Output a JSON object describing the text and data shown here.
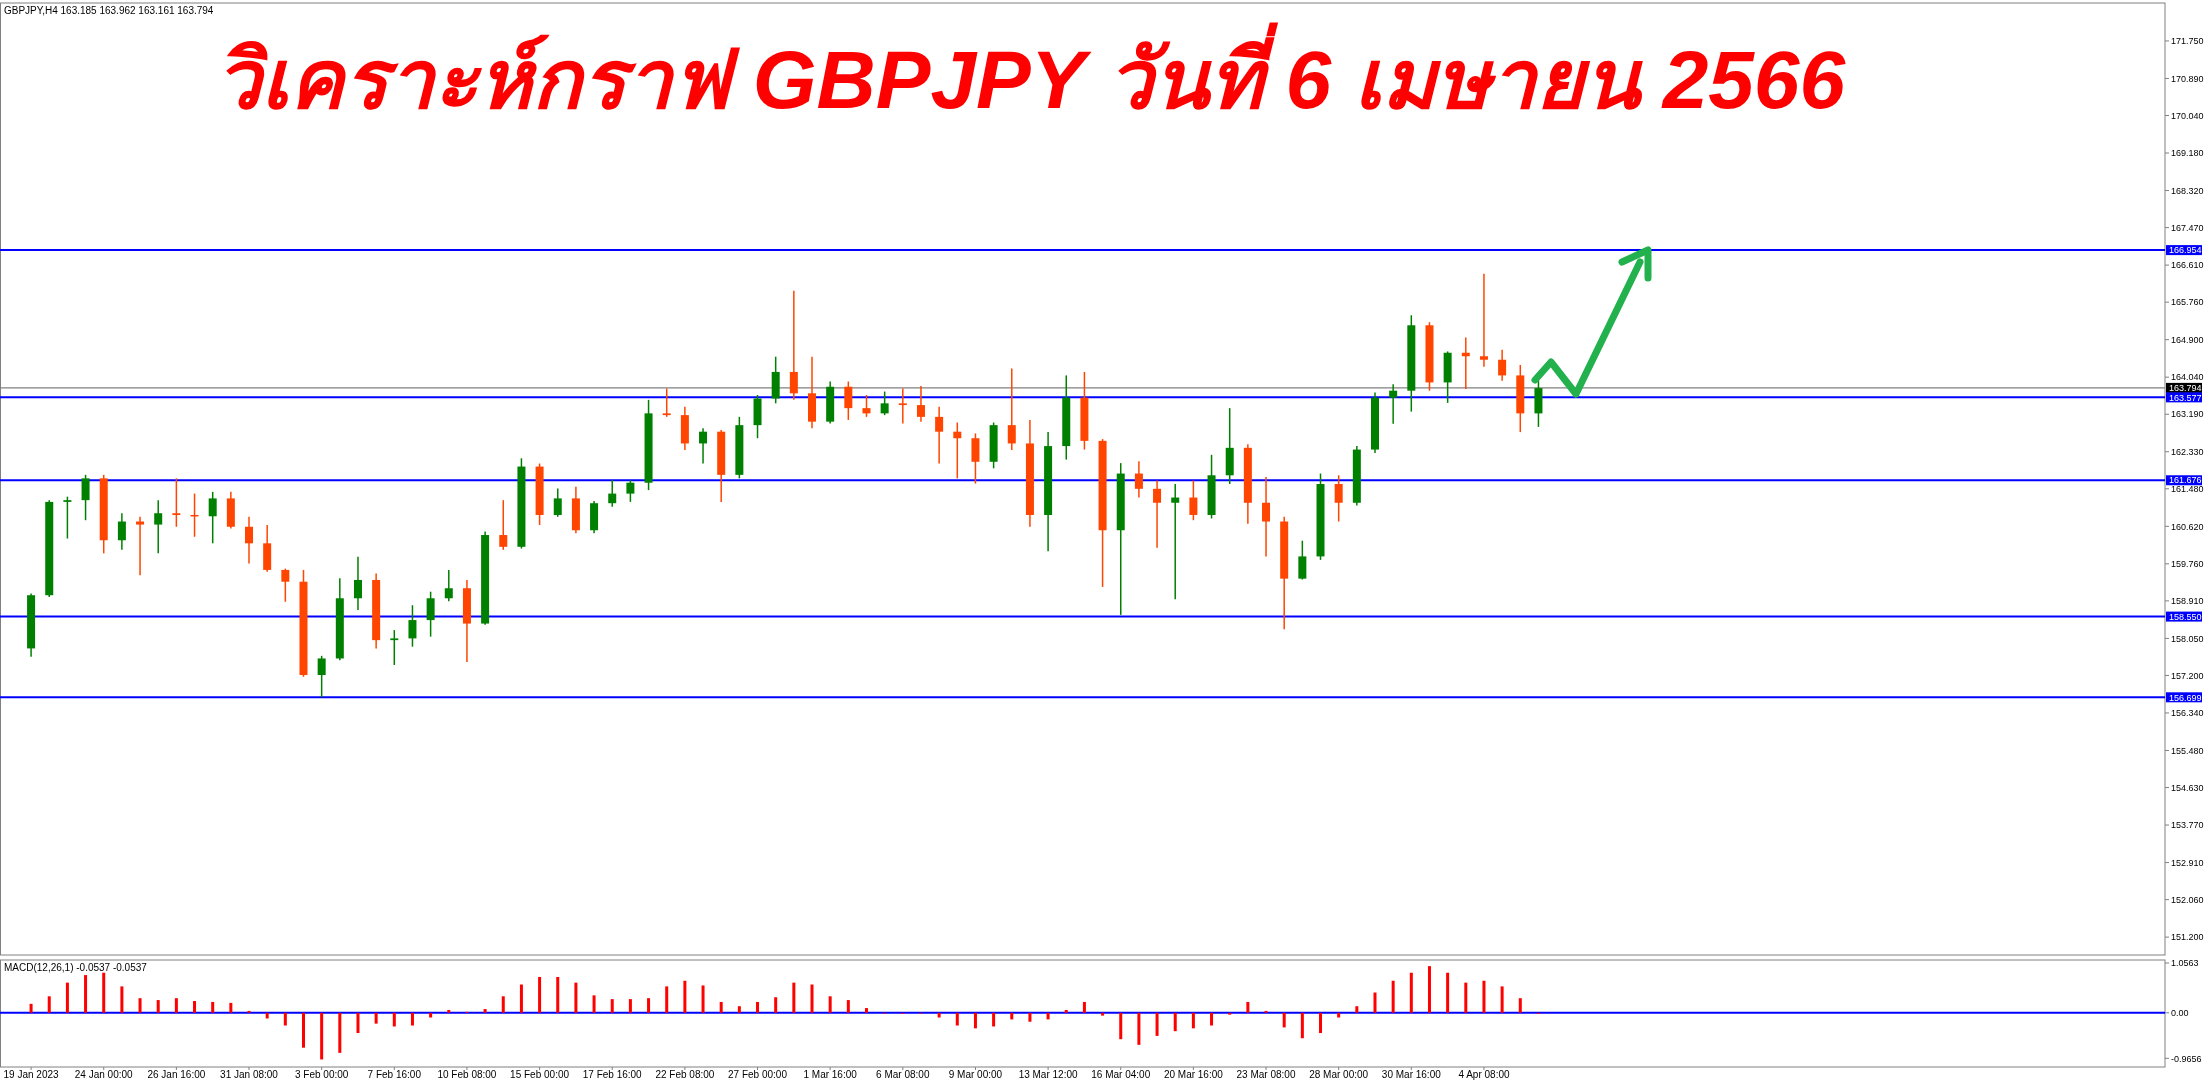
{
  "chart_data": [
    {
      "type": "candlestick",
      "title": "วิเคราะห์กราฟ GBPJPY วันที่ 6 เมษายน 2566",
      "annotations": [
        "GBPJPY,H4 163.185 163.962 163.161 163.794"
      ],
      "categories": [
        null,
        null,
        null,
        null,
        null,
        null,
        null,
        null,
        null,
        null,
        null,
        null,
        null,
        null,
        null,
        null,
        null,
        null,
        null,
        null,
        null,
        null,
        null,
        null,
        null,
        null,
        null,
        null,
        null,
        null,
        null,
        null,
        null,
        null,
        null,
        null,
        null,
        null,
        null,
        null,
        null,
        null,
        null,
        null,
        null,
        null,
        null,
        null,
        null,
        null,
        null,
        null,
        null,
        null,
        null,
        null,
        null,
        null,
        null,
        null,
        null,
        null,
        null,
        null,
        null,
        null,
        null,
        null,
        null,
        null,
        null,
        null,
        null,
        null,
        null,
        null,
        null,
        null,
        null,
        null,
        null,
        null,
        null,
        null,
        null,
        null,
        null,
        null,
        null,
        null,
        null,
        null,
        null,
        null,
        null,
        null,
        null,
        null,
        null,
        null,
        null,
        null,
        null,
        null,
        null,
        null,
        null,
        null,
        null,
        null,
        null,
        null,
        null,
        null,
        null,
        null,
        null,
        null
      ],
      "ohlc": [
        [
          157.82,
          159.08,
          157.63,
          159.04
        ],
        [
          159.04,
          161.22,
          159.0,
          161.18
        ],
        [
          161.18,
          161.3,
          160.34,
          161.22
        ],
        [
          161.22,
          161.8,
          160.76,
          161.72
        ],
        [
          161.72,
          161.8,
          160.0,
          160.3
        ],
        [
          160.3,
          160.92,
          160.08,
          160.73
        ],
        [
          160.73,
          160.84,
          159.5,
          160.66
        ],
        [
          160.66,
          161.22,
          160.0,
          160.92
        ],
        [
          160.92,
          161.72,
          160.61,
          160.88
        ],
        [
          160.88,
          161.37,
          160.38,
          160.85
        ],
        [
          160.85,
          161.41,
          160.23,
          161.26
        ],
        [
          161.26,
          161.41,
          160.57,
          160.61
        ],
        [
          160.61,
          160.84,
          159.77,
          160.23
        ],
        [
          160.23,
          160.65,
          159.58,
          159.62
        ],
        [
          159.62,
          159.65,
          158.89,
          159.35
        ],
        [
          159.35,
          159.62,
          157.17,
          157.21
        ],
        [
          157.21,
          157.65,
          156.7,
          157.59
        ],
        [
          157.59,
          159.43,
          157.55,
          158.97
        ],
        [
          158.97,
          159.92,
          158.7,
          159.39
        ],
        [
          159.39,
          159.54,
          157.82,
          158.01
        ],
        [
          158.01,
          158.24,
          157.44,
          158.05
        ],
        [
          158.05,
          158.81,
          157.86,
          158.47
        ],
        [
          158.47,
          159.12,
          158.09,
          158.97
        ],
        [
          158.97,
          159.62,
          158.9,
          159.2
        ],
        [
          159.2,
          159.39,
          157.51,
          158.39
        ],
        [
          158.39,
          160.5,
          158.36,
          160.42
        ],
        [
          160.42,
          161.22,
          160.08,
          160.15
        ],
        [
          160.15,
          162.18,
          160.11,
          161.99
        ],
        [
          161.99,
          162.06,
          160.65,
          160.88
        ],
        [
          160.88,
          161.49,
          160.84,
          161.26
        ],
        [
          161.26,
          161.53,
          160.46,
          160.53
        ],
        [
          160.53,
          161.2,
          160.46,
          161.15
        ],
        [
          161.15,
          161.68,
          161.07,
          161.37
        ],
        [
          161.37,
          161.68,
          161.18,
          161.62
        ],
        [
          161.62,
          163.52,
          161.45,
          163.21
        ],
        [
          163.21,
          163.78,
          163.13,
          163.17
        ],
        [
          163.17,
          163.36,
          162.37,
          162.52
        ],
        [
          162.52,
          162.87,
          162.06,
          162.79
        ],
        [
          162.79,
          162.83,
          161.18,
          161.8
        ],
        [
          161.8,
          163.13,
          161.72,
          162.94
        ],
        [
          162.94,
          163.63,
          162.64,
          163.55
        ],
        [
          163.55,
          164.51,
          163.44,
          164.16
        ],
        [
          164.16,
          166.02,
          163.52,
          163.67
        ],
        [
          163.67,
          164.51,
          162.87,
          163.02
        ],
        [
          163.02,
          163.94,
          162.98,
          163.82
        ],
        [
          163.82,
          163.94,
          163.06,
          163.33
        ],
        [
          163.33,
          163.63,
          163.13,
          163.21
        ],
        [
          163.21,
          163.71,
          163.17,
          163.44
        ],
        [
          163.44,
          163.78,
          162.98,
          163.4
        ],
        [
          163.4,
          163.84,
          163.02,
          163.13
        ],
        [
          163.13,
          163.36,
          162.06,
          162.79
        ],
        [
          162.79,
          163.0,
          161.72,
          162.64
        ],
        [
          162.64,
          162.75,
          161.6,
          162.1
        ],
        [
          162.1,
          163.0,
          161.95,
          162.94
        ],
        [
          162.94,
          164.24,
          162.37,
          162.52
        ],
        [
          162.52,
          163.06,
          160.61,
          160.88
        ],
        [
          160.88,
          162.78,
          160.05,
          162.46
        ],
        [
          162.46,
          164.08,
          162.15,
          163.57
        ],
        [
          163.57,
          164.16,
          162.38,
          162.58
        ],
        [
          162.58,
          162.62,
          159.23,
          160.53
        ],
        [
          160.53,
          162.07,
          158.59,
          161.83
        ],
        [
          161.83,
          162.11,
          161.28,
          161.48
        ],
        [
          161.48,
          161.67,
          160.13,
          161.16
        ],
        [
          161.16,
          161.59,
          158.95,
          161.28
        ],
        [
          161.28,
          161.67,
          160.76,
          160.88
        ],
        [
          160.88,
          162.26,
          160.8,
          161.79
        ],
        [
          161.79,
          163.33,
          161.59,
          162.42
        ],
        [
          162.42,
          162.5,
          160.68,
          161.16
        ],
        [
          161.16,
          161.75,
          159.93,
          160.73
        ],
        [
          160.73,
          160.84,
          158.26,
          159.42
        ],
        [
          159.42,
          160.29,
          159.4,
          159.93
        ],
        [
          159.93,
          161.83,
          159.85,
          161.59
        ],
        [
          161.59,
          161.79,
          160.73,
          161.16
        ],
        [
          161.16,
          162.46,
          161.1,
          162.38
        ],
        [
          162.38,
          163.69,
          162.3,
          163.57
        ],
        [
          163.57,
          163.88,
          162.97,
          163.73
        ],
        [
          163.73,
          165.46,
          163.25,
          165.23
        ],
        [
          165.23,
          165.3,
          163.73,
          163.92
        ],
        [
          163.92,
          164.63,
          163.45,
          164.6
        ],
        [
          164.6,
          164.95,
          163.77,
          164.52
        ],
        [
          164.52,
          166.41,
          164.28,
          164.44
        ],
        [
          164.44,
          164.67,
          163.96,
          164.08
        ],
        [
          164.08,
          164.32,
          162.78,
          163.21
        ],
        [
          163.21,
          163.96,
          162.9,
          163.79
        ],
        null,
        null,
        null,
        null,
        null,
        null,
        null,
        null,
        null,
        null,
        null,
        null,
        null,
        null,
        null,
        null,
        null,
        null,
        null,
        null,
        null,
        null,
        null,
        null,
        null,
        null,
        null,
        null,
        null,
        null,
        null,
        null,
        null,
        null
      ],
      "colors": [
        "#008000",
        "#008000",
        "#008000",
        "#008000",
        "#ff4500",
        "#008000",
        "#ff4500",
        "#008000",
        "#ff4500",
        "#ff4500",
        "#008000",
        "#ff4500",
        "#ff4500",
        "#ff4500",
        "#ff4500",
        "#ff4500",
        "#008000",
        "#008000",
        "#008000",
        "#ff4500",
        "#008000",
        "#008000",
        "#008000",
        "#008000",
        "#ff4500",
        "#008000",
        "#ff4500",
        "#008000",
        "#ff4500",
        "#008000",
        "#ff4500",
        "#008000",
        "#008000",
        "#008000",
        "#008000",
        "#ff4500",
        "#ff4500",
        "#008000",
        "#ff4500",
        "#008000",
        "#008000",
        "#008000",
        "#ff4500",
        "#ff4500",
        "#008000",
        "#ff4500",
        "#ff4500",
        "#008000",
        "#ff4500",
        "#ff4500",
        "#ff4500",
        "#ff4500",
        "#ff4500",
        "#008000",
        "#ff4500",
        "#ff4500",
        "#008000",
        "#008000",
        "#ff4500",
        "#ff4500",
        "#008000",
        "#ff4500",
        "#ff4500",
        "#008000",
        "#ff4500",
        "#008000",
        "#008000",
        "#ff4500",
        "#ff4500",
        "#ff4500",
        "#008000",
        "#008000",
        "#ff4500",
        "#008000",
        "#008000",
        "#008000",
        "#008000",
        "#ff4500",
        "#008000",
        "#ff4500",
        "#ff4500",
        "#ff4500",
        "#ff4500",
        "#008000",
        null,
        null,
        null,
        null,
        null,
        null,
        null,
        null,
        null,
        null,
        null,
        null,
        null,
        null,
        null,
        null,
        null,
        null,
        null,
        null,
        null,
        null,
        null,
        null,
        null,
        null,
        null,
        null,
        null,
        null,
        null,
        null,
        null,
        null
      ],
      "ylim": [
        150.79,
        172.62
      ],
      "yticks": [
        {
          "value": 151.2,
          "label": "151.200"
        },
        {
          "value": 152.06,
          "label": "152.060"
        },
        {
          "value": 152.91,
          "label": "152.910"
        },
        {
          "value": 153.77,
          "label": "153.770"
        },
        {
          "value": 154.63,
          "label": "154.630"
        },
        {
          "value": 155.48,
          "label": "155.480"
        },
        {
          "value": 156.34,
          "label": "156.340"
        },
        {
          "value": 157.2,
          "label": "157.200"
        },
        {
          "value": 158.05,
          "label": "158.050"
        },
        {
          "value": 158.91,
          "label": "158.910"
        },
        {
          "value": 159.76,
          "label": "159.760"
        },
        {
          "value": 160.62,
          "label": "160.620"
        },
        {
          "value": 161.48,
          "label": "161.480"
        },
        {
          "value": 162.33,
          "label": "162.330"
        },
        {
          "value": 163.19,
          "label": "163.190"
        },
        {
          "value": 164.04,
          "label": "164.040"
        },
        {
          "value": 164.9,
          "label": "164.900"
        },
        {
          "value": 165.76,
          "label": "165.760"
        },
        {
          "value": 166.61,
          "label": "166.610"
        },
        {
          "value": 167.47,
          "label": "167.470"
        },
        {
          "value": 168.32,
          "label": "168.320"
        },
        {
          "value": 169.18,
          "label": "169.180"
        },
        {
          "value": 170.04,
          "label": "170.040"
        },
        {
          "value": 170.89,
          "label": "170.890"
        },
        {
          "value": 171.75,
          "label": "171.750"
        }
      ],
      "ref_lines": [
        {
          "axis": "y",
          "value": 166.954,
          "label": "166.954",
          "color": "#0000ff"
        },
        {
          "axis": "y",
          "value": 163.794,
          "label": "163.794",
          "color": "#808080"
        },
        {
          "axis": "y",
          "value": 163.577,
          "label": "163.577",
          "color": "#0000ff"
        },
        {
          "axis": "y",
          "value": 161.676,
          "label": "161.676",
          "color": "#0000ff"
        },
        {
          "axis": "y",
          "value": 158.55,
          "label": "158.550",
          "color": "#0000ff"
        },
        {
          "axis": "y",
          "value": 156.699,
          "label": "156.699",
          "color": "#0000ff"
        }
      ],
      "tick_labels": "y"
    },
    {
      "type": "bar",
      "title": "MACD(12,26,1) -0.0537 -0.0537",
      "categories": [
        "19 Jan 2023",
        null,
        null,
        null,
        "24 Jan 00:00",
        null,
        null,
        null,
        "26 Jan 16:00",
        null,
        null,
        null,
        "31 Jan 08:00",
        null,
        null,
        null,
        "3 Feb 00:00",
        null,
        null,
        null,
        "7 Feb 16:00",
        null,
        null,
        null,
        "10 Feb 08:00",
        null,
        null,
        null,
        "15 Feb 00:00",
        null,
        null,
        null,
        "17 Feb 16:00",
        null,
        null,
        null,
        "22 Feb 08:00",
        null,
        null,
        null,
        "27 Feb 00:00",
        null,
        null,
        null,
        "1 Mar 16:00",
        null,
        null,
        null,
        "6 Mar 08:00",
        null,
        null,
        null,
        "9 Mar 00:00",
        null,
        null,
        null,
        "13 Mar 12:00",
        null,
        null,
        null,
        "16 Mar 04:00",
        null,
        null,
        null,
        "20 Mar 16:00",
        null,
        null,
        null,
        "23 Mar 08:00",
        null,
        null,
        null,
        "28 Mar 00:00",
        null,
        null,
        null,
        "30 Mar 16:00",
        null,
        null,
        null,
        "4 Apr 08:00",
        null,
        null,
        null,
        null,
        null,
        null,
        null,
        null,
        null,
        null,
        null,
        null,
        null,
        null,
        null,
        null,
        null,
        null,
        null,
        null,
        null,
        null,
        null,
        null,
        null,
        null,
        null,
        null,
        null,
        null,
        null,
        null,
        null,
        null,
        null,
        null,
        null
      ],
      "values": [
        0.19,
        0.35,
        0.64,
        0.8,
        0.85,
        0.56,
        0.31,
        0.27,
        0.31,
        0.25,
        0.23,
        0.21,
        0.04,
        -0.12,
        -0.27,
        -0.74,
        -0.99,
        -0.85,
        -0.43,
        -0.23,
        -0.29,
        -0.27,
        -0.1,
        0.06,
        0.02,
        0.08,
        0.35,
        0.6,
        0.76,
        0.76,
        0.64,
        0.37,
        0.29,
        0.29,
        0.31,
        0.56,
        0.68,
        0.58,
        0.23,
        0.14,
        0.23,
        0.33,
        0.64,
        0.6,
        0.35,
        0.27,
        0.1,
        0.0,
        -0.02,
        0.0,
        -0.1,
        -0.27,
        -0.33,
        -0.29,
        -0.14,
        -0.19,
        -0.14,
        0.06,
        0.23,
        -0.06,
        -0.56,
        -0.68,
        -0.49,
        -0.39,
        -0.33,
        -0.27,
        -0.04,
        0.23,
        0.04,
        -0.31,
        -0.54,
        -0.43,
        -0.1,
        0.14,
        0.43,
        0.68,
        0.85,
        0.99,
        0.85,
        0.64,
        0.68,
        0.56,
        0.31,
        -0.02,
        null,
        null,
        null,
        null,
        null,
        null,
        null,
        null,
        null,
        null,
        null,
        null,
        null,
        null,
        null,
        null,
        null,
        null,
        null,
        null,
        null,
        null,
        null,
        null,
        null,
        null,
        null,
        null,
        null,
        null,
        null,
        null,
        null,
        null
      ],
      "color": "#ff0000",
      "ylim": [
        -1.15,
        1.12
      ],
      "yticks": [
        {
          "value": 1.0563,
          "label": "1.0563"
        },
        {
          "value": 0,
          "label": "0.00"
        },
        {
          "value": -0.9656,
          "label": "-0.9656"
        }
      ],
      "ref_lines": [
        {
          "axis": "y",
          "value": 0,
          "color": "#0000ff"
        }
      ]
    }
  ]
}
